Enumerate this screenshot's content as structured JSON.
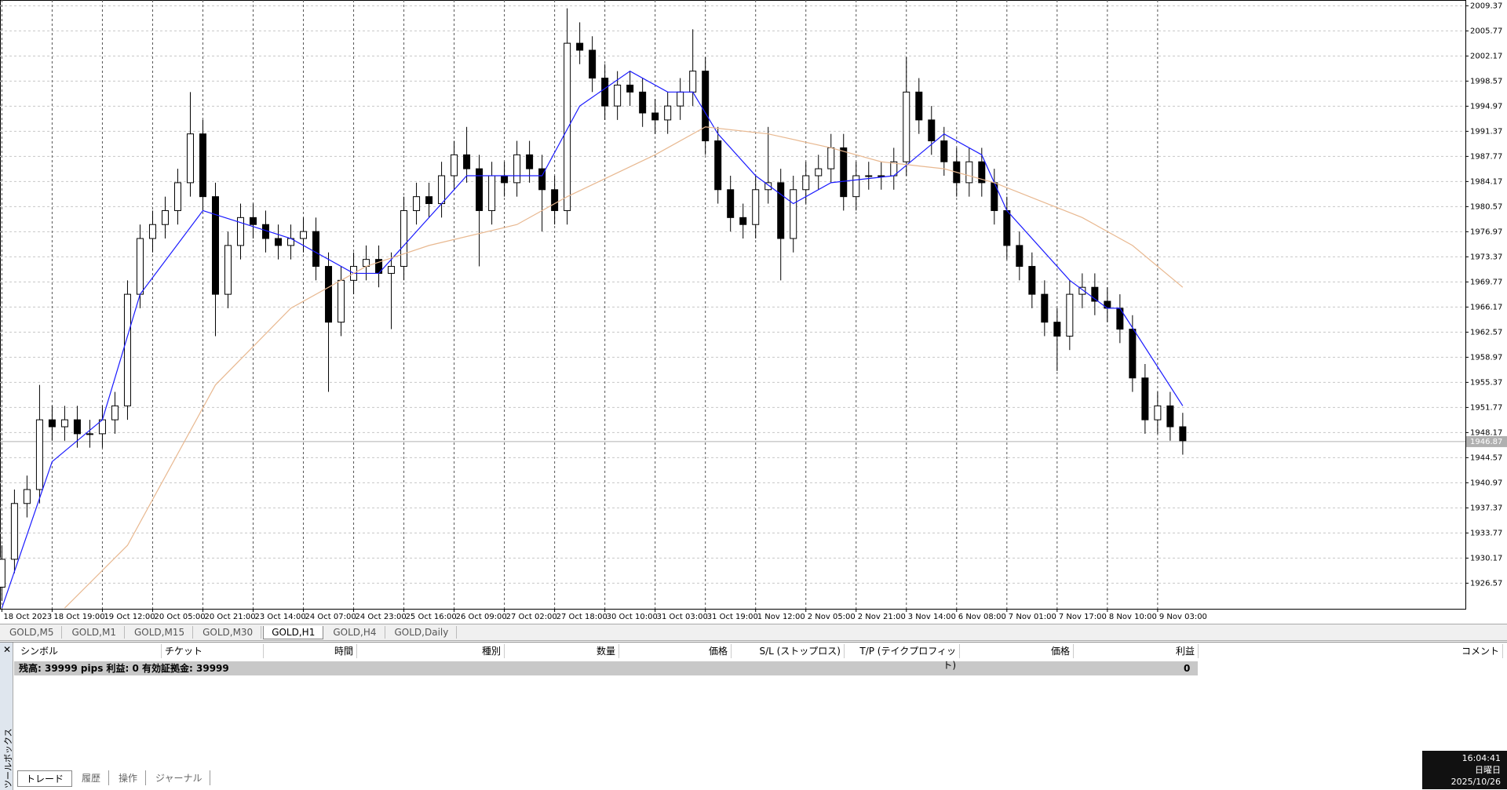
{
  "chart_data": {
    "type": "candlestick",
    "grid": true,
    "up_color": "#ffffff",
    "down_color": "#000000",
    "xlim": [
      -0.15,
      116.5
    ],
    "ylim": [
      1922.9,
      2010.2
    ],
    "yticks": [
      2009.37,
      2005.77,
      2002.17,
      1998.57,
      1994.97,
      1991.37,
      1987.77,
      1984.17,
      1980.57,
      1976.97,
      1973.37,
      1969.77,
      1966.17,
      1962.57,
      1958.97,
      1955.37,
      1951.77,
      1948.17,
      1944.57,
      1940.97,
      1937.37,
      1933.77,
      1930.17,
      1926.57
    ],
    "xticks": [
      {
        "value": 0,
        "label": "18 Oct 2023"
      },
      {
        "value": 4,
        "label": "18 Oct 19:00"
      },
      {
        "value": 8,
        "label": "19 Oct 12:00"
      },
      {
        "value": 12,
        "label": "20 Oct 05:00"
      },
      {
        "value": 16,
        "label": "20 Oct 21:00"
      },
      {
        "value": 20,
        "label": "23 Oct 14:00"
      },
      {
        "value": 24,
        "label": "24 Oct 07:00"
      },
      {
        "value": 28,
        "label": "24 Oct 23:00"
      },
      {
        "value": 32,
        "label": "25 Oct 16:00"
      },
      {
        "value": 36,
        "label": "26 Oct 09:00"
      },
      {
        "value": 40,
        "label": "27 Oct 02:00"
      },
      {
        "value": 44,
        "label": "27 Oct 18:00"
      },
      {
        "value": 48,
        "label": "30 Oct 10:00"
      },
      {
        "value": 52,
        "label": "31 Oct 03:00"
      },
      {
        "value": 56,
        "label": "31 Oct 19:00"
      },
      {
        "value": 60,
        "label": "1 Nov 12:00"
      },
      {
        "value": 64,
        "label": "2 Nov 05:00"
      },
      {
        "value": 68,
        "label": "2 Nov 21:00"
      },
      {
        "value": 72,
        "label": "3 Nov 14:00"
      },
      {
        "value": 76,
        "label": "6 Nov 08:00"
      },
      {
        "value": 80,
        "label": "7 Nov 01:00"
      },
      {
        "value": 84,
        "label": "7 Nov 17:00"
      },
      {
        "value": 88,
        "label": "8 Nov 10:00"
      },
      {
        "value": 92,
        "label": "9 Nov 03:00"
      }
    ],
    "open": [
      1926,
      1930,
      1938,
      1940,
      1950,
      1949,
      1950,
      1948,
      1948,
      1950,
      1952,
      1968,
      1976,
      1978,
      1980,
      1984,
      1991,
      1982,
      1968,
      1975,
      1979,
      1978,
      1976,
      1975,
      1976,
      1977,
      1972,
      1964,
      1970,
      1972,
      1973,
      1971,
      1972,
      1980,
      1982,
      1981,
      1985,
      1988,
      1986,
      1980,
      1985,
      1984,
      1988,
      1986,
      1983,
      1980,
      2004,
      2003,
      1999,
      1995,
      1998,
      1997,
      1994,
      1993,
      1995,
      1997,
      2000,
      1990,
      1983,
      1979,
      1978,
      1983,
      1984,
      1976,
      1983,
      1985,
      1986,
      1989,
      1982,
      1985,
      1985,
      1985,
      1987,
      1997,
      1993,
      1990,
      1987,
      1984,
      1987,
      1984,
      1980,
      1975,
      1972,
      1968,
      1964,
      1962,
      1968,
      1969,
      1967,
      1966,
      1963,
      1956,
      1950,
      1952,
      1949
    ],
    "high": [
      1932,
      1940,
      1942,
      1955,
      1952,
      1952,
      1952,
      1950,
      1952,
      1954,
      1970,
      1978,
      1980,
      1982,
      1986,
      1997,
      1993,
      1984,
      1977,
      1981,
      1981,
      1980,
      1978,
      1978,
      1979,
      1979,
      1974,
      1972,
      1974,
      1975,
      1975,
      1974,
      1982,
      1984,
      1984,
      1987,
      1990,
      1992,
      1988,
      1987,
      1987,
      1990,
      1990,
      1988,
      1985,
      2009,
      2007,
      2005,
      2001,
      2000,
      2000,
      1999,
      1996,
      1997,
      1999,
      2006,
      2002,
      1992,
      1985,
      1981,
      1985,
      1992,
      1986,
      1985,
      1987,
      1988,
      1991,
      1991,
      1987,
      1987,
      1987,
      1989,
      2002,
      1999,
      1995,
      1992,
      1989,
      1989,
      1989,
      1986,
      1982,
      1977,
      1974,
      1970,
      1966,
      1970,
      1971,
      1971,
      1969,
      1968,
      1965,
      1958,
      1954,
      1954,
      1951
    ],
    "low": [
      1924,
      1928,
      1936,
      1938,
      1947,
      1947,
      1946,
      1946,
      1946,
      1948,
      1950,
      1966,
      1974,
      1976,
      1978,
      1982,
      1980,
      1962,
      1966,
      1973,
      1976,
      1974,
      1973,
      1973,
      1974,
      1970,
      1954,
      1962,
      1968,
      1970,
      1969,
      1963,
      1970,
      1978,
      1979,
      1979,
      1983,
      1984,
      1972,
      1978,
      1982,
      1982,
      1984,
      1977,
      1978,
      1978,
      2001,
      1997,
      1993,
      1993,
      1995,
      1992,
      1991,
      1991,
      1993,
      1995,
      1988,
      1981,
      1977,
      1976,
      1976,
      1981,
      1970,
      1974,
      1981,
      1983,
      1984,
      1980,
      1980,
      1983,
      1983,
      1983,
      1985,
      1991,
      1988,
      1985,
      1982,
      1982,
      1982,
      1978,
      1973,
      1970,
      1966,
      1962,
      1957,
      1960,
      1966,
      1965,
      1964,
      1961,
      1954,
      1948,
      1948,
      1947,
      1945
    ],
    "close": [
      1930,
      1938,
      1940,
      1950,
      1949,
      1950,
      1948,
      1948,
      1950,
      1952,
      1968,
      1976,
      1978,
      1980,
      1984,
      1991,
      1982,
      1968,
      1975,
      1979,
      1978,
      1976,
      1975,
      1976,
      1977,
      1972,
      1964,
      1970,
      1972,
      1973,
      1971,
      1972,
      1980,
      1982,
      1981,
      1985,
      1988,
      1986,
      1980,
      1985,
      1984,
      1988,
      1986,
      1983,
      1980,
      2004,
      2003,
      1999,
      1995,
      1998,
      1997,
      1994,
      1993,
      1995,
      1997,
      2000,
      1990,
      1983,
      1979,
      1978,
      1983,
      1984,
      1976,
      1983,
      1985,
      1986,
      1989,
      1982,
      1985,
      1985,
      1985,
      1987,
      1997,
      1993,
      1990,
      1987,
      1984,
      1987,
      1984,
      1980,
      1975,
      1972,
      1968,
      1964,
      1962,
      1968,
      1969,
      1967,
      1966,
      1963,
      1956,
      1950,
      1952,
      1949,
      1947
    ],
    "series": [
      {
        "color": "#1a1aff",
        "x": [
          0,
          4,
          8,
          11,
          16,
          23,
          28,
          30,
          33,
          37,
          43,
          46,
          50,
          53,
          55,
          57,
          60,
          63,
          66,
          71,
          75,
          78,
          80,
          85,
          88,
          89,
          94
        ],
        "values": [
          1923,
          1944,
          1950,
          1968,
          1980,
          1976,
          1971,
          1971,
          1977,
          1985,
          1985,
          1995,
          2000,
          1997,
          1997,
          1991,
          1985,
          1981,
          1984,
          1985,
          1991,
          1988,
          1980,
          1970,
          1966,
          1966,
          1952
        ]
      },
      {
        "color": "#e8b890",
        "x": [
          5,
          10,
          17,
          23,
          29,
          34,
          41,
          45,
          52,
          56,
          61,
          66,
          70,
          75,
          79,
          86,
          90,
          94
        ],
        "values": [
          1923,
          1932,
          1955,
          1966,
          1972,
          1975,
          1978,
          1982,
          1988,
          1992,
          1991,
          1989,
          1987,
          1986,
          1984,
          1979,
          1975,
          1969
        ]
      }
    ],
    "price_line": 1946.87
  },
  "symbol_tabs": [
    "GOLD,M5",
    "GOLD,M1",
    "GOLD,M15",
    "GOLD,M30",
    "GOLD,H1",
    "GOLD,H4",
    "GOLD,Daily"
  ],
  "active_tab": 4,
  "toolbox": {
    "title": "ツールボックス",
    "columns": [
      "シンボル",
      "チケット",
      "時間",
      "種別",
      "数量",
      "価格",
      "S/L (ストップロス)",
      "T/P (テイクプロフィット)",
      "価格",
      "利益",
      "コメント"
    ],
    "summary": "残高: 39999 pips  利益: 0  有効証拠金: 39999",
    "summary_profit": "0",
    "tabs": [
      "トレード",
      "履歴",
      "操作",
      "ジャーナル"
    ]
  },
  "clock": {
    "time": "16:04:41",
    "weekday": "日曜日",
    "date": "2025/10/26"
  }
}
